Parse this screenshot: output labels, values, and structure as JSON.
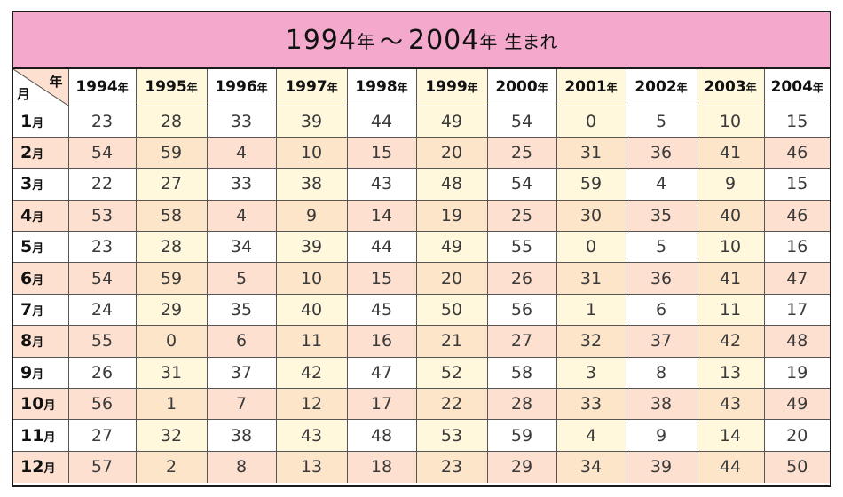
{
  "title": {
    "start_year": "1994",
    "end_year": "2004",
    "year_kanji": "年",
    "tilde": "～",
    "suffix": "生まれ"
  },
  "corner": {
    "year_label": "年",
    "month_label": "月"
  },
  "colors": {
    "title_bg": "#f4a9cc",
    "odd_row_bg": "#ffffff",
    "even_row_bg": "#fde0cf",
    "odd_row_alt_col": "#fff8dd",
    "even_row_alt_col": "#fde5c9",
    "corner_wedge": "#fde0cf"
  },
  "years": [
    {
      "num": "1994",
      "k": "年"
    },
    {
      "num": "1995",
      "k": "年"
    },
    {
      "num": "1996",
      "k": "年"
    },
    {
      "num": "1997",
      "k": "年"
    },
    {
      "num": "1998",
      "k": "年"
    },
    {
      "num": "1999",
      "k": "年"
    },
    {
      "num": "2000",
      "k": "年"
    },
    {
      "num": "2001",
      "k": "年"
    },
    {
      "num": "2002",
      "k": "年"
    },
    {
      "num": "2003",
      "k": "年"
    },
    {
      "num": "2004",
      "k": "年"
    }
  ],
  "rows": [
    {
      "num": "1",
      "k": "月",
      "values": [
        "23",
        "28",
        "33",
        "39",
        "44",
        "49",
        "54",
        "0",
        "5",
        "10",
        "15"
      ]
    },
    {
      "num": "2",
      "k": "月",
      "values": [
        "54",
        "59",
        "4",
        "10",
        "15",
        "20",
        "25",
        "31",
        "36",
        "41",
        "46"
      ]
    },
    {
      "num": "3",
      "k": "月",
      "values": [
        "22",
        "27",
        "33",
        "38",
        "43",
        "48",
        "54",
        "59",
        "4",
        "9",
        "15"
      ]
    },
    {
      "num": "4",
      "k": "月",
      "values": [
        "53",
        "58",
        "4",
        "9",
        "14",
        "19",
        "25",
        "30",
        "35",
        "40",
        "46"
      ]
    },
    {
      "num": "5",
      "k": "月",
      "values": [
        "23",
        "28",
        "34",
        "39",
        "44",
        "49",
        "55",
        "0",
        "5",
        "10",
        "16"
      ]
    },
    {
      "num": "6",
      "k": "月",
      "values": [
        "54",
        "59",
        "5",
        "10",
        "15",
        "20",
        "26",
        "31",
        "36",
        "41",
        "47"
      ]
    },
    {
      "num": "7",
      "k": "月",
      "values": [
        "24",
        "29",
        "35",
        "40",
        "45",
        "50",
        "56",
        "1",
        "6",
        "11",
        "17"
      ]
    },
    {
      "num": "8",
      "k": "月",
      "values": [
        "55",
        "0",
        "6",
        "11",
        "16",
        "21",
        "27",
        "32",
        "37",
        "42",
        "48"
      ]
    },
    {
      "num": "9",
      "k": "月",
      "values": [
        "26",
        "31",
        "37",
        "42",
        "47",
        "52",
        "58",
        "3",
        "8",
        "13",
        "19"
      ]
    },
    {
      "num": "10",
      "k": "月",
      "values": [
        "56",
        "1",
        "7",
        "12",
        "17",
        "22",
        "28",
        "33",
        "38",
        "43",
        "49"
      ]
    },
    {
      "num": "11",
      "k": "月",
      "values": [
        "27",
        "32",
        "38",
        "43",
        "48",
        "53",
        "59",
        "4",
        "9",
        "14",
        "20"
      ]
    },
    {
      "num": "12",
      "k": "月",
      "values": [
        "57",
        "2",
        "8",
        "13",
        "18",
        "23",
        "29",
        "34",
        "39",
        "44",
        "50"
      ]
    }
  ]
}
